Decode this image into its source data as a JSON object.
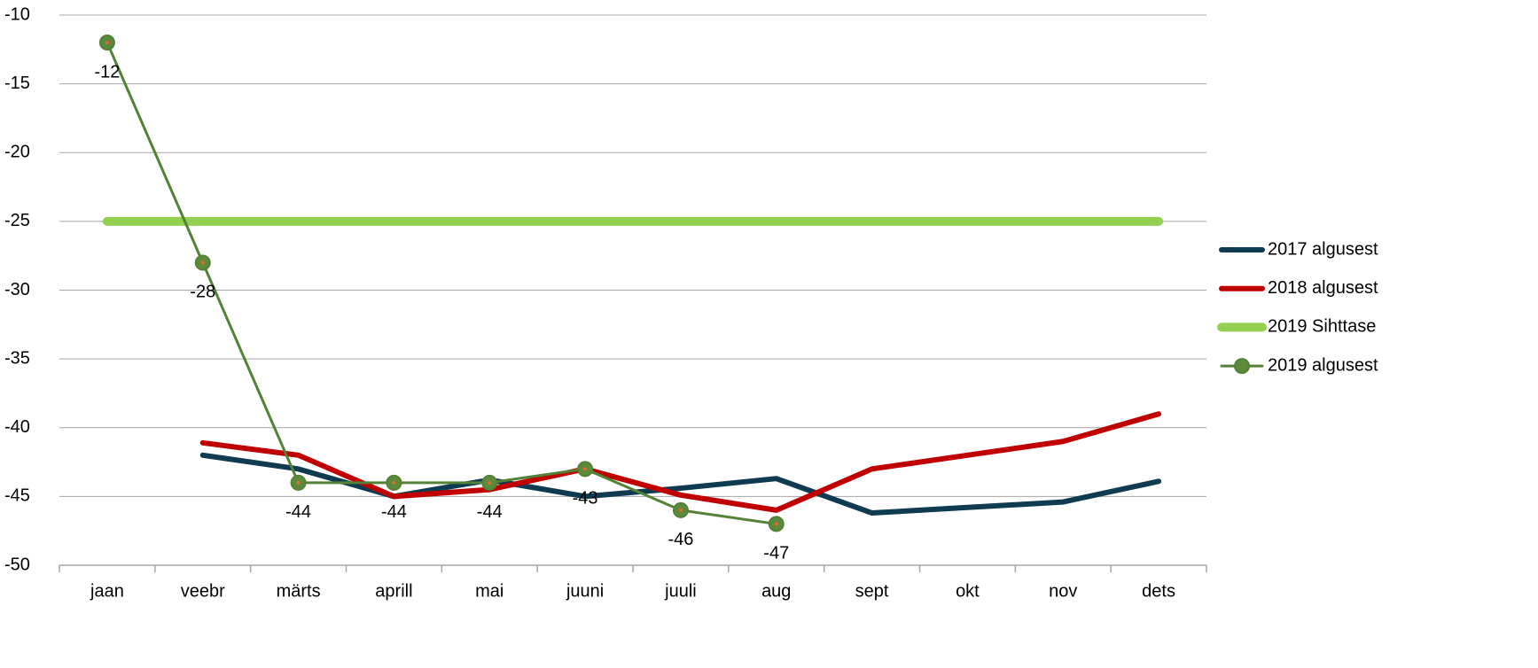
{
  "chart_data": {
    "type": "line",
    "categories": [
      "jaan",
      "veebr",
      "märts",
      "aprill",
      "mai",
      "juuni",
      "juuli",
      "aug",
      "sept",
      "okt",
      "nov",
      "dets"
    ],
    "series": [
      {
        "name": "2017 algusest",
        "color": "#0e3a52",
        "values": [
          null,
          -42,
          -43,
          -45,
          -43.8,
          -45,
          -44.4,
          -43.7,
          -46.2,
          -45.8,
          -45.4,
          -43.9
        ]
      },
      {
        "name": "2018 algusest",
        "color": "#c00000",
        "values": [
          null,
          -41.1,
          -42,
          -45,
          -44.5,
          -43,
          -44.9,
          -46,
          -43,
          -42,
          -41,
          -39
        ]
      },
      {
        "name": "2019 Sihttase",
        "color": "#92d050",
        "values": [
          -25,
          -25,
          -25,
          -25,
          -25,
          -25,
          -25,
          -25,
          -25,
          -25,
          -25,
          -25
        ]
      },
      {
        "name": "2019 algusest",
        "color": "#538135",
        "values": [
          -12,
          -28,
          -44,
          -44,
          -44,
          -43,
          -46,
          -47,
          null,
          null,
          null,
          null
        ],
        "markers": true,
        "data_labels": true
      }
    ],
    "ylim": [
      -50,
      -10
    ],
    "yticks": [
      -10,
      -15,
      -20,
      -25,
      -30,
      -35,
      -40,
      -45,
      -50
    ],
    "grid": true,
    "legend": "right"
  }
}
